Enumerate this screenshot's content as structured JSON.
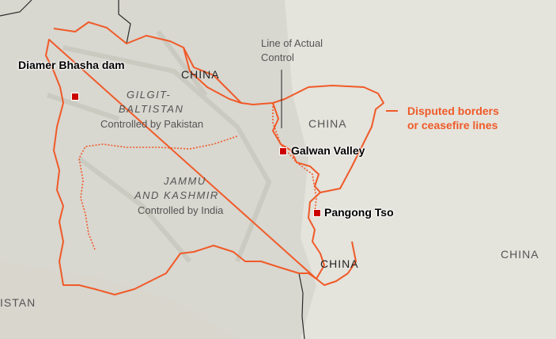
{
  "colors": {
    "background": "#e4e3dc",
    "border": "#f05a28",
    "legend_text": "#f05a28",
    "marker": "#cc0000",
    "national_border": "#2a2a2a"
  },
  "regions": {
    "gilgit": {
      "name_line1": "GILGIT-",
      "name_line2": "BALTISTAN",
      "status": "Controlled by Pakistan"
    },
    "jammu": {
      "name_line1": "JAMMU",
      "name_line2": "AND KASHMIR",
      "status": "Controlled by India"
    }
  },
  "countries": {
    "china_nw": "CHINA",
    "china_center": "CHINA",
    "china_south": "CHINA",
    "china_east": "CHINA",
    "pakistan_partial": "ISTAN"
  },
  "places": {
    "diamer": "Diamer Bhasha dam",
    "galwan": "Galwan Valley",
    "pangong": "Pangong Tso"
  },
  "annotations": {
    "lac_line1": "Line of Actual",
    "lac_line2": "Control"
  },
  "legend": {
    "line1": "Disputed borders",
    "line2": "or ceasefire lines"
  }
}
